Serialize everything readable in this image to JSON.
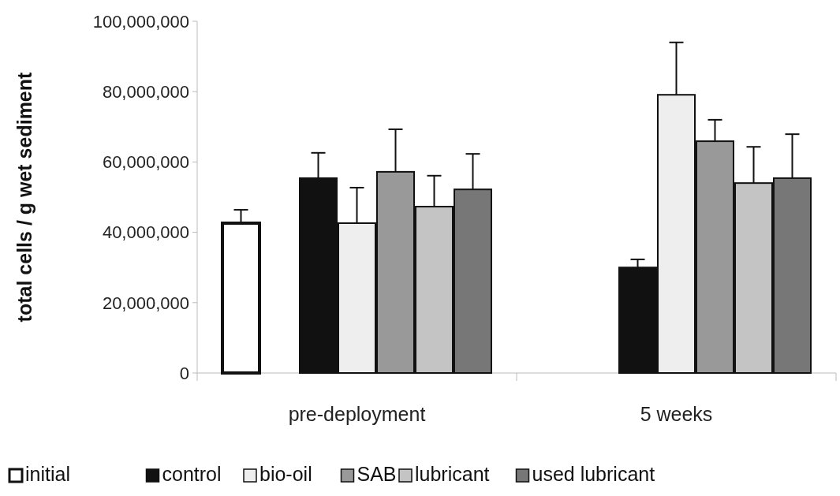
{
  "chart_data": {
    "type": "bar",
    "ylabel": "total cells / g wet sediment",
    "categories": [
      "pre-deployment",
      "5 weeks"
    ],
    "ylim": [
      0,
      100000000
    ],
    "yticks": [
      {
        "value": 0,
        "label": "0"
      },
      {
        "value": 20000000,
        "label": "20,000,000"
      },
      {
        "value": 40000000,
        "label": "40,000,000"
      },
      {
        "value": 60000000,
        "label": "60,000,000"
      },
      {
        "value": 80000000,
        "label": "80,000,000"
      },
      {
        "value": 100000000,
        "label": "100,000,000"
      }
    ],
    "grid": false,
    "legend": "bottom",
    "series": [
      {
        "name": "initial",
        "color": "#ffffff",
        "values": [
          42600000,
          0
        ],
        "errors": [
          [
            42600000,
            46400000
          ],
          null
        ]
      },
      {
        "name": "control",
        "color": "#111111",
        "values": [
          55400000,
          30000000
        ],
        "errors": [
          [
            55400000,
            62600000
          ],
          [
            30000000,
            32300000
          ]
        ]
      },
      {
        "name": "bio-oil",
        "color": "#eeeeee",
        "values": [
          42600000,
          79100000
        ],
        "errors": [
          [
            42600000,
            52700000
          ],
          [
            79100000,
            94000000
          ]
        ]
      },
      {
        "name": "SAB",
        "color": "#999999",
        "values": [
          57200000,
          65900000
        ],
        "errors": [
          [
            57200000,
            69300000
          ],
          [
            65900000,
            72000000
          ]
        ]
      },
      {
        "name": "lubricant",
        "color": "#c4c4c4",
        "values": [
          47300000,
          54000000
        ],
        "errors": [
          [
            47300000,
            56100000
          ],
          [
            54000000,
            64300000
          ]
        ]
      },
      {
        "name": "used lubricant",
        "color": "#777777",
        "values": [
          52200000,
          55400000
        ],
        "errors": [
          [
            52200000,
            62300000
          ],
          [
            55400000,
            67900000
          ]
        ]
      }
    ]
  }
}
